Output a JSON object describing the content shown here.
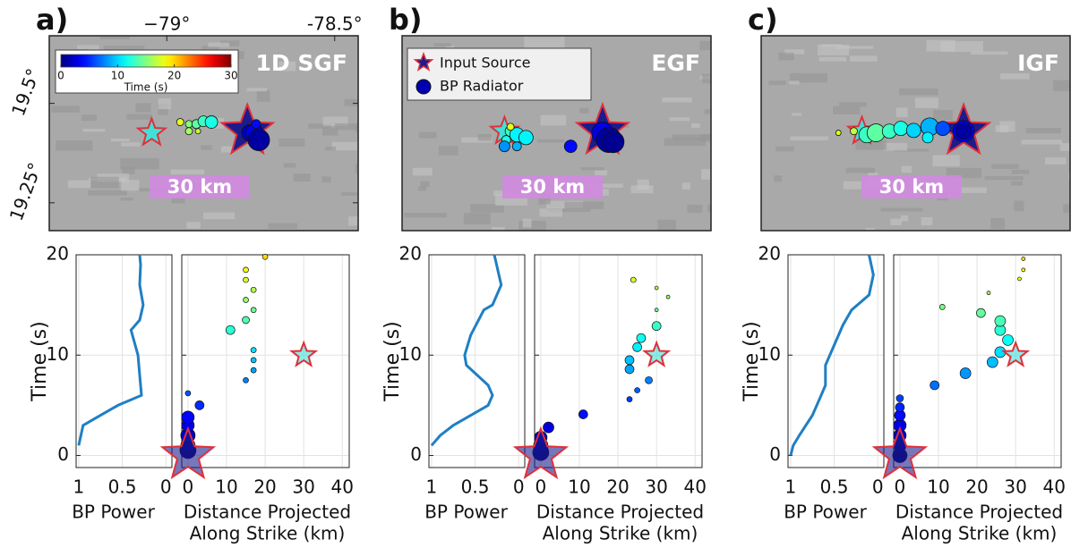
{
  "chart_data": [
    {
      "type": "map",
      "panel_label": "a)",
      "title": "1D SGF",
      "scalebar": "30 km",
      "xlim": [
        -79.35,
        -78.43
      ],
      "ylim": [
        19.18,
        19.67
      ],
      "xticks": [
        {
          "value": -79,
          "label": "−79°"
        },
        {
          "value": -78.5,
          "label": "-78.5°"
        }
      ],
      "yticks": [
        {
          "value": 19.5,
          "label": "19.5°"
        },
        {
          "value": 19.25,
          "label": "19.25°"
        }
      ],
      "clim": [
        0,
        30
      ],
      "colorbar": {
        "ticks": [
          0,
          10,
          20,
          30
        ],
        "label": "Time (s)"
      },
      "sources": {
        "x": [
          -79.045,
          -78.76
        ],
        "values": [
          19.426,
          19.43
        ],
        "sizes": [
          16,
          30
        ],
        "colors": [
          "#40e0d8",
          "#1c1c8c"
        ],
        "edgecolor": "#e0303a"
      },
      "radiators": {
        "x": [
          -78.96,
          -78.934,
          -78.912,
          -78.891,
          -78.867,
          -78.934,
          -78.907,
          -78.753,
          -78.739,
          -78.734,
          -78.726
        ],
        "values": [
          19.453,
          19.448,
          19.448,
          19.455,
          19.453,
          19.43,
          19.43,
          19.426,
          19.426,
          19.448,
          19.408
        ],
        "sizes": [
          4,
          4,
          5,
          6,
          7,
          4,
          3,
          9,
          10,
          5,
          12
        ],
        "time": [
          18,
          15,
          14,
          13,
          12,
          16,
          17,
          2,
          3,
          4,
          1
        ]
      }
    },
    {
      "type": "line",
      "xlim": [
        1.03,
        -0.07
      ],
      "ylim": [
        -1.2,
        20
      ],
      "xticks": [
        1,
        0.5,
        0
      ],
      "yticks": [
        0,
        10,
        20
      ],
      "grid": true,
      "xlabel": "BP Power",
      "ylabel": "Time (s)",
      "color": "#1f7fc4",
      "x": [
        1.0,
        0.95,
        0.75,
        0.55,
        0.28,
        0.3,
        0.32,
        0.4,
        0.3,
        0.26,
        0.3,
        0.29,
        0.3
      ],
      "values": [
        1,
        3,
        4,
        5,
        6,
        8,
        10,
        12.5,
        13.5,
        15,
        17,
        19,
        20
      ]
    },
    {
      "type": "scatter",
      "xlim": [
        -1.6,
        41.8
      ],
      "ylim": [
        -1.2,
        20
      ],
      "xticks": [
        0,
        10,
        20,
        30,
        40
      ],
      "xlabel": [
        "Distance Projected",
        "Along Strike (km)"
      ],
      "clim": [
        0,
        30
      ],
      "sources": {
        "x": [
          0,
          30
        ],
        "values": [
          0,
          10
        ],
        "sizes": [
          30,
          14
        ],
        "colors": [
          "#1c1c8c",
          "#40e0d8"
        ],
        "edgecolor": "#e0303a"
      },
      "radiators": {
        "x": [
          0,
          0,
          0,
          0,
          0,
          3,
          0,
          15,
          17,
          17,
          17,
          11,
          15,
          17,
          15,
          17,
          15,
          15,
          20
        ],
        "values": [
          0.5,
          1,
          2,
          3,
          3.8,
          5,
          6.2,
          7.5,
          8.5,
          9.5,
          10.5,
          12.5,
          13.5,
          14.5,
          15.5,
          16.5,
          17.5,
          18.5,
          19.8
        ],
        "sizes": [
          9,
          8,
          8,
          7,
          7,
          5,
          3,
          3,
          3,
          3,
          3,
          5,
          4,
          3,
          3,
          3,
          3,
          3,
          3
        ]
      }
    },
    {
      "type": "map",
      "panel_label": "b)",
      "title": "EGF",
      "scalebar": "30 km",
      "xlim": [
        -79.35,
        -78.43
      ],
      "ylim": [
        19.18,
        19.67
      ],
      "clim": [
        0,
        30
      ],
      "sources": {
        "name": "Input Source",
        "x": [
          -79.045,
          -78.753
        ],
        "values": [
          19.43,
          19.43
        ],
        "sizes": [
          16,
          30
        ],
        "colors": [
          "#40e0d8",
          "#1c1c8c"
        ],
        "edgecolor": "#e0303a"
      },
      "radiators": {
        "name": "BP Radiator",
        "x": [
          -79.027,
          -79.008,
          -78.981,
          -79.04,
          -79.008,
          -79.045,
          -79.027,
          -78.848,
          -78.753,
          -78.734,
          -78.721
        ],
        "values": [
          19.43,
          19.421,
          19.414,
          19.408,
          19.392,
          19.392,
          19.441,
          19.392,
          19.426,
          19.408,
          19.403
        ],
        "sizes": [
          6,
          8,
          8,
          5,
          5,
          6,
          4,
          7,
          12,
          14,
          12
        ],
        "time": [
          13,
          11,
          11,
          12,
          9,
          8,
          18,
          4,
          3,
          1,
          0.5
        ]
      }
    },
    {
      "type": "line",
      "xlim": [
        1.03,
        -0.07
      ],
      "ylim": [
        -1.2,
        20
      ],
      "xticks": [
        1,
        0.5,
        0
      ],
      "yticks": [
        0,
        10,
        20
      ],
      "grid": true,
      "xlabel": "BP Power",
      "ylabel": "Time (s)",
      "color": "#1f7fc4",
      "x": [
        1.0,
        0.9,
        0.75,
        0.55,
        0.35,
        0.3,
        0.35,
        0.6,
        0.62,
        0.55,
        0.4,
        0.3,
        0.2,
        0.28
      ],
      "values": [
        1,
        2,
        3,
        4,
        5,
        6,
        7,
        9,
        10,
        12,
        14.5,
        15,
        17,
        20
      ]
    },
    {
      "type": "scatter",
      "xlim": [
        -1.6,
        41.8
      ],
      "ylim": [
        -1.2,
        20
      ],
      "xticks": [
        0,
        10,
        20,
        30,
        40
      ],
      "xlabel": [
        "Distance Projected",
        "Along Strike (km)"
      ],
      "clim": [
        0,
        30
      ],
      "sources": {
        "x": [
          0,
          30
        ],
        "values": [
          0,
          10
        ],
        "sizes": [
          30,
          14
        ],
        "colors": [
          "#1c1c8c",
          "#40e0d8"
        ],
        "edgecolor": "#e0303a"
      },
      "radiators": {
        "x": [
          0,
          0,
          0,
          2,
          11,
          23,
          25,
          28,
          23,
          23,
          25,
          26,
          30,
          30,
          33,
          30,
          24
        ],
        "values": [
          0.3,
          1,
          1.8,
          2.8,
          4.1,
          5.6,
          6.5,
          7.5,
          8.6,
          9.5,
          10.8,
          11.7,
          12.9,
          14.5,
          15.8,
          16.7,
          17.5
        ],
        "sizes": [
          9,
          8,
          7,
          6,
          5,
          3,
          3,
          4,
          5,
          5,
          5,
          5,
          5,
          2,
          2,
          2,
          3
        ]
      }
    },
    {
      "type": "map",
      "panel_label": "c)",
      "title": "IGF",
      "scalebar": "30 km",
      "xlim": [
        -79.35,
        -78.43
      ],
      "ylim": [
        19.18,
        19.67
      ],
      "clim": [
        0,
        30
      ],
      "sources": {
        "x": [
          -79.05,
          -78.747
        ],
        "values": [
          19.43,
          19.43
        ],
        "sizes": [
          16,
          30
        ],
        "colors": [
          "#40e0d8",
          "#1c1c8c"
        ],
        "edgecolor": "#e0303a"
      },
      "radiators": {
        "x": [
          -79.12,
          -79.074,
          -79.035,
          -79.008,
          -78.968,
          -78.934,
          -78.896,
          -78.848,
          -78.854,
          -78.809,
          -78.747,
          -78.747
        ],
        "values": [
          19.426,
          19.43,
          19.421,
          19.426,
          19.43,
          19.437,
          19.432,
          19.441,
          19.414,
          19.437,
          19.43,
          19.43
        ],
        "sizes": [
          3,
          4,
          9,
          10,
          8,
          8,
          8,
          10,
          6,
          8,
          12,
          9
        ],
        "time": [
          18,
          17,
          13,
          14,
          13,
          12,
          10,
          9,
          11,
          6,
          3,
          1
        ]
      }
    },
    {
      "type": "line",
      "xlim": [
        1.03,
        -0.07
      ],
      "ylim": [
        -1.2,
        20
      ],
      "xticks": [
        1,
        0.5,
        0
      ],
      "yticks": [
        0,
        10,
        20
      ],
      "grid": true,
      "xlabel": "BP Power",
      "ylabel": "Time (s)",
      "color": "#1f7fc4",
      "x": [
        1.0,
        0.97,
        0.9,
        0.75,
        0.65,
        0.6,
        0.6,
        0.5,
        0.4,
        0.3,
        0.1,
        0.05,
        0.1
      ],
      "values": [
        0,
        1,
        2,
        4,
        6,
        7,
        9,
        11,
        13,
        14.5,
        16,
        18,
        20
      ]
    },
    {
      "type": "scatter",
      "xlim": [
        -1.6,
        41.8
      ],
      "ylim": [
        -1.2,
        20
      ],
      "xticks": [
        0,
        10,
        20,
        30,
        40
      ],
      "xlabel": [
        "Distance Projected",
        "Along Strike (km)"
      ],
      "clim": [
        0,
        30
      ],
      "sources": {
        "x": [
          0,
          30
        ],
        "values": [
          0,
          10
        ],
        "sizes": [
          30,
          14
        ],
        "colors": [
          "#1c1c8c",
          "#40e0d8"
        ],
        "edgecolor": "#e0303a"
      },
      "radiators": {
        "x": [
          0,
          0,
          0,
          0,
          0,
          0,
          0,
          9,
          17,
          24,
          26,
          28,
          26,
          26,
          21,
          11,
          23,
          31,
          32,
          32
        ],
        "values": [
          0,
          1,
          2,
          3,
          4,
          4.8,
          5.7,
          7,
          8.2,
          9.3,
          10.3,
          11.5,
          12.5,
          13.4,
          14.2,
          14.8,
          16.2,
          17.6,
          18.5,
          19.6
        ],
        "sizes": [
          8,
          7,
          7,
          7,
          6,
          5,
          4,
          5,
          6,
          6,
          6,
          6,
          6,
          6,
          5,
          3,
          2,
          2,
          2,
          2
        ]
      }
    }
  ]
}
